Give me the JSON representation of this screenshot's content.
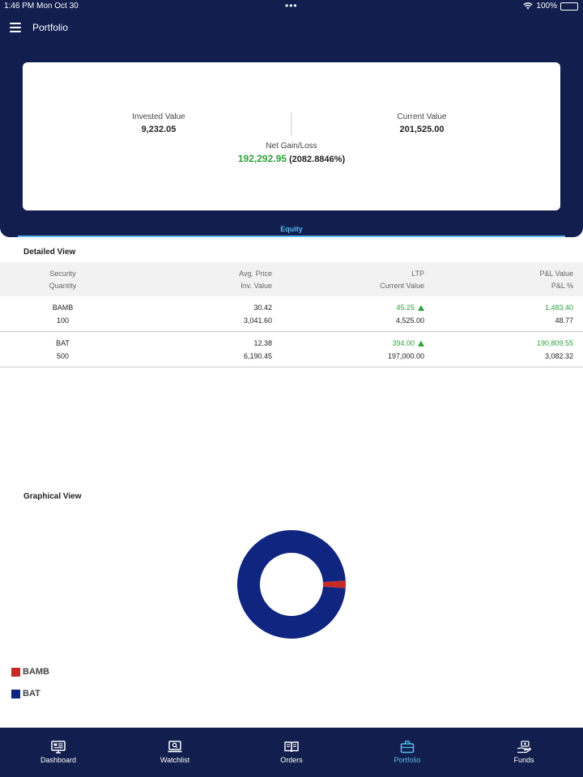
{
  "status_bar": {
    "time": "1:46 PM",
    "date": "Mon Oct 30",
    "battery": "100%"
  },
  "header": {
    "title": "Portfolio",
    "tab": "Equity"
  },
  "summary": {
    "invested_label": "Invested Value",
    "invested_value": "9,232.05",
    "current_label": "Current Value",
    "current_value": "201,525.00",
    "net_label": "Net Gain/Loss",
    "net_value": "192,292.95",
    "net_pct": "(2082.8846%)"
  },
  "detailed_view": {
    "title": "Detailed View",
    "headers": {
      "security": "Security",
      "quantity": "Quantity",
      "avg_price": "Avg. Price",
      "inv_value": "Inv. Value",
      "ltp": "LTP",
      "current_value": "Current Value",
      "pl_value": "P&L Value",
      "pl_pct": "P&L %"
    },
    "rows": [
      {
        "security": "BAMB",
        "quantity": "100",
        "avg_price": "30.42",
        "inv_value": "3,041.60",
        "ltp": "45.25",
        "current_value": "4,525.00",
        "pl_value": "1,483.40",
        "pl_pct": "48.77"
      },
      {
        "security": "BAT",
        "quantity": "500",
        "avg_price": "12.38",
        "inv_value": "6,190.45",
        "ltp": "394.00",
        "current_value": "197,000.00",
        "pl_value": "190,809.55",
        "pl_pct": "3,082.32"
      }
    ]
  },
  "graphical_view": {
    "title": "Graphical View"
  },
  "chart_data": {
    "type": "pie",
    "donut": true,
    "categories": [
      "BAMB",
      "BAT"
    ],
    "values": [
      4525.0,
      197000.0
    ],
    "colors": [
      "#c62a26",
      "#0f2580"
    ],
    "legend": "bottom-left"
  },
  "bottom_nav": {
    "items": [
      {
        "label": "Dashboard",
        "icon": "dashboard-icon"
      },
      {
        "label": "Watchlist",
        "icon": "watchlist-icon"
      },
      {
        "label": "Orders",
        "icon": "orders-icon"
      },
      {
        "label": "Portfolio",
        "icon": "portfolio-icon"
      },
      {
        "label": "Funds",
        "icon": "funds-icon"
      }
    ],
    "active": "Portfolio",
    "active_color": "#5db8ee"
  },
  "theme": {
    "primary": "#111e4e",
    "gain": "#2ea23b",
    "accent": "#5db8ee"
  }
}
